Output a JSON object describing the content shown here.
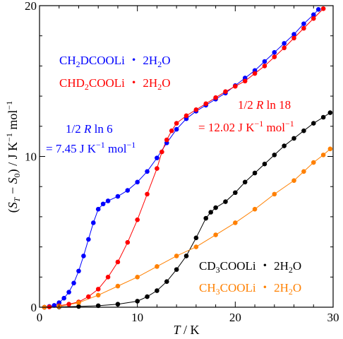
{
  "chart_data": {
    "type": "scatter",
    "xlabel": "T / K",
    "ylabel": "(S_T − S_0) / J K^−1 mol^−1",
    "xlim": [
      0,
      30
    ],
    "ylim": [
      0,
      20
    ],
    "xticks": [
      "0",
      "10",
      "20",
      "30"
    ],
    "yticks": [
      "0",
      "10",
      "20"
    ],
    "grid": false,
    "legend_placement": "top-left and bottom-right",
    "series": [
      {
        "name": "CH2DCOOLi ・ 2H2O",
        "color": "#0000ff",
        "points": [
          [
            0.5,
            0.0
          ],
          [
            1.0,
            0.05
          ],
          [
            1.5,
            0.12
          ],
          [
            2.0,
            0.3
          ],
          [
            2.5,
            0.6
          ],
          [
            3.0,
            1.0
          ],
          [
            3.5,
            1.6
          ],
          [
            4.0,
            2.4
          ],
          [
            4.5,
            3.4
          ],
          [
            5.0,
            4.5
          ],
          [
            5.5,
            5.6
          ],
          [
            6.0,
            6.5
          ],
          [
            6.5,
            6.85
          ],
          [
            7.0,
            7.05
          ],
          [
            8.0,
            7.35
          ],
          [
            9.0,
            7.75
          ],
          [
            10.0,
            8.3
          ],
          [
            11.0,
            9.0
          ],
          [
            12.0,
            9.9
          ],
          [
            13.0,
            10.9
          ],
          [
            14.0,
            11.8
          ],
          [
            15.0,
            12.5
          ],
          [
            16.0,
            13.0
          ],
          [
            17.0,
            13.4
          ],
          [
            18.0,
            13.8
          ],
          [
            19.0,
            14.2
          ],
          [
            20.0,
            14.7
          ],
          [
            21.0,
            15.2
          ],
          [
            22.0,
            15.7
          ],
          [
            23.0,
            16.3
          ],
          [
            24.0,
            16.9
          ],
          [
            25.0,
            17.5
          ],
          [
            26.0,
            18.1
          ],
          [
            27.0,
            18.8
          ],
          [
            28.0,
            19.4
          ],
          [
            28.5,
            19.75
          ]
        ]
      },
      {
        "name": "CHD2COOLi ・ 2H2O",
        "color": "#ff0000",
        "points": [
          [
            0.5,
            0.0
          ],
          [
            1.0,
            0.02
          ],
          [
            2.0,
            0.1
          ],
          [
            3.0,
            0.2
          ],
          [
            4.0,
            0.35
          ],
          [
            5.0,
            0.7
          ],
          [
            6.0,
            1.2
          ],
          [
            7.0,
            2.0
          ],
          [
            8.0,
            3.0
          ],
          [
            9.0,
            4.3
          ],
          [
            10.0,
            5.8
          ],
          [
            11.0,
            7.5
          ],
          [
            12.0,
            9.2
          ],
          [
            12.5,
            10.3
          ],
          [
            13.0,
            11.1
          ],
          [
            13.5,
            11.7
          ],
          [
            14.0,
            12.2
          ],
          [
            15.0,
            12.7
          ],
          [
            16.0,
            13.1
          ],
          [
            17.0,
            13.5
          ],
          [
            18.0,
            13.9
          ],
          [
            19.0,
            14.3
          ],
          [
            20.0,
            14.65
          ],
          [
            21.0,
            15.0
          ],
          [
            22.0,
            15.5
          ],
          [
            23.0,
            16.0
          ],
          [
            24.0,
            16.6
          ],
          [
            25.0,
            17.2
          ],
          [
            26.0,
            17.85
          ],
          [
            27.0,
            18.5
          ],
          [
            28.0,
            19.15
          ],
          [
            29.0,
            19.8
          ]
        ]
      },
      {
        "name": "CD3COOLi ・ 2H2O",
        "color": "#000000",
        "points": [
          [
            0.5,
            0.0
          ],
          [
            2.0,
            0.02
          ],
          [
            4.0,
            0.05
          ],
          [
            6.0,
            0.1
          ],
          [
            8.0,
            0.2
          ],
          [
            10.0,
            0.4
          ],
          [
            11.0,
            0.7
          ],
          [
            12.0,
            1.1
          ],
          [
            13.0,
            1.7
          ],
          [
            14.0,
            2.5
          ],
          [
            15.0,
            3.4
          ],
          [
            16.0,
            4.6
          ],
          [
            17.0,
            5.9
          ],
          [
            17.5,
            6.3
          ],
          [
            18.0,
            6.6
          ],
          [
            19.0,
            7.0
          ],
          [
            20.0,
            7.6
          ],
          [
            21.0,
            8.3
          ],
          [
            22.0,
            8.9
          ],
          [
            23.0,
            9.5
          ],
          [
            24.0,
            10.1
          ],
          [
            25.0,
            10.7
          ],
          [
            26.0,
            11.2
          ],
          [
            27.0,
            11.7
          ],
          [
            28.0,
            12.2
          ],
          [
            29.0,
            12.6
          ],
          [
            29.7,
            12.9
          ]
        ]
      },
      {
        "name": "CH3COOLi ・ 2H2O",
        "color": "#ff8000",
        "points": [
          [
            0.5,
            0.0
          ],
          [
            2.0,
            0.05
          ],
          [
            4.0,
            0.3
          ],
          [
            6.0,
            0.8
          ],
          [
            8.0,
            1.4
          ],
          [
            10.0,
            2.0
          ],
          [
            12.0,
            2.7
          ],
          [
            14.0,
            3.4
          ],
          [
            16.0,
            4.0
          ],
          [
            18.0,
            4.8
          ],
          [
            20.0,
            5.6
          ],
          [
            22.0,
            6.5
          ],
          [
            24.0,
            7.5
          ],
          [
            26.0,
            8.4
          ],
          [
            27.0,
            9.0
          ],
          [
            28.0,
            9.6
          ],
          [
            29.0,
            10.1
          ],
          [
            29.7,
            10.5
          ]
        ]
      }
    ],
    "annotations": [
      {
        "lines": [
          "1/2 R ln 6",
          "= 7.45 J K⁻¹ mol⁻¹"
        ],
        "color": "#0000ff"
      },
      {
        "lines": [
          "1/2 R ln 18",
          "= 12.02 J K⁻¹ mol⁻¹"
        ],
        "color": "#ff0000"
      }
    ]
  }
}
